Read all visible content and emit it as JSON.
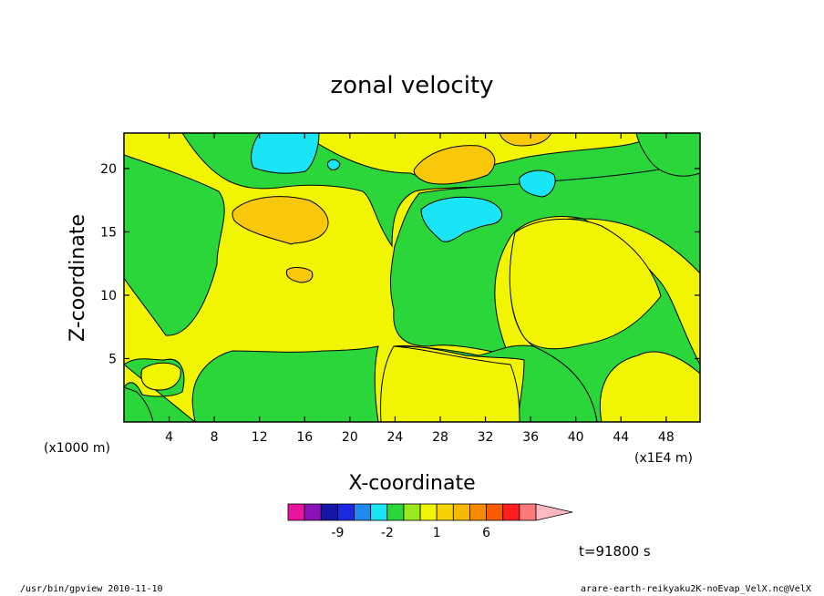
{
  "chart_data": {
    "type": "contour",
    "title": "zonal velocity",
    "xlabel": "X-coordinate",
    "ylabel": "Z-coordinate",
    "x_unit": "(x1E4 m)",
    "y_unit": "(x1000 m)",
    "xlim": [
      0,
      51
    ],
    "ylim": [
      0,
      22.8
    ],
    "x_ticks": [
      4,
      8,
      12,
      16,
      20,
      24,
      28,
      32,
      36,
      40,
      44,
      48
    ],
    "y_ticks": [
      5,
      10,
      15,
      20
    ],
    "fields": {
      "background_band": "1",
      "green_band": "0",
      "orange_band": "2",
      "cyan_band": "-1"
    },
    "colorbar": {
      "colors": [
        "#e8139e",
        "#8a10b8",
        "#1515a8",
        "#1a2ae0",
        "#1e8aee",
        "#19e5f7",
        "#2ad63a",
        "#9ae81e",
        "#f2f500",
        "#f5d200",
        "#f7b800",
        "#f58a00",
        "#fa5a00",
        "#ff1e1e",
        "#fa7a7a",
        "#ffb8c0"
      ],
      "labels": [
        {
          "text": "-9",
          "index": 2
        },
        {
          "text": "-2",
          "index": 5
        },
        {
          "text": "1",
          "index": 8
        },
        {
          "text": "6",
          "index": 11
        }
      ]
    },
    "time_label": "t=91800 s"
  },
  "footer": {
    "left": "/usr/bin/gpview   2010-11-10",
    "right": "arare-earth-reikyaku2K-noEvap_VelX.nc@VelX"
  },
  "colors": {
    "yellow": "#f2f500",
    "green": "#2ad63a",
    "orange": "#fac80a",
    "cyan": "#19e5f7"
  }
}
